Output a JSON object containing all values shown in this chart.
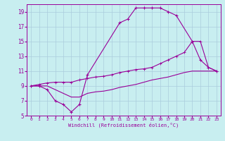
{
  "xlabel": "Windchill (Refroidissement éolien,°C)",
  "bg_color": "#c8eef0",
  "line_color": "#990099",
  "grid_color": "#aaccdd",
  "xlim": [
    -0.5,
    23.5
  ],
  "ylim": [
    5,
    20
  ],
  "yticks": [
    5,
    7,
    9,
    11,
    13,
    15,
    17,
    19
  ],
  "xticks": [
    0,
    1,
    2,
    3,
    4,
    5,
    6,
    7,
    8,
    9,
    10,
    11,
    12,
    13,
    14,
    15,
    16,
    17,
    18,
    19,
    20,
    21,
    22,
    23
  ],
  "line1_x": [
    0,
    1,
    2,
    3,
    4,
    5,
    6,
    7,
    11,
    12,
    13,
    14,
    15,
    16,
    17,
    18,
    20,
    21,
    22,
    23
  ],
  "line1_y": [
    9,
    9,
    8.5,
    7,
    6.5,
    5.5,
    6.5,
    10.5,
    17.5,
    18,
    19.5,
    19.5,
    19.5,
    19.5,
    19,
    18.5,
    15,
    12.5,
    11.5,
    11
  ],
  "line2_x": [
    0,
    1,
    2,
    3,
    4,
    5,
    6,
    7,
    8,
    9,
    10,
    11,
    12,
    13,
    14,
    15,
    16,
    17,
    18,
    19,
    20,
    21,
    22,
    23
  ],
  "line2_y": [
    9,
    9.2,
    9.4,
    9.5,
    9.5,
    9.5,
    9.8,
    10,
    10.2,
    10.3,
    10.5,
    10.8,
    11,
    11.2,
    11.3,
    11.5,
    12,
    12.5,
    13,
    13.5,
    15,
    15,
    11.5,
    11
  ],
  "line3_x": [
    0,
    1,
    2,
    3,
    4,
    5,
    6,
    7,
    8,
    9,
    10,
    11,
    12,
    13,
    14,
    15,
    16,
    17,
    18,
    19,
    20,
    21,
    22,
    23
  ],
  "line3_y": [
    9,
    9,
    9,
    8.5,
    8,
    7.5,
    7.5,
    8,
    8.2,
    8.3,
    8.5,
    8.8,
    9,
    9.2,
    9.5,
    9.8,
    10,
    10.2,
    10.5,
    10.8,
    11,
    11,
    11,
    11
  ]
}
